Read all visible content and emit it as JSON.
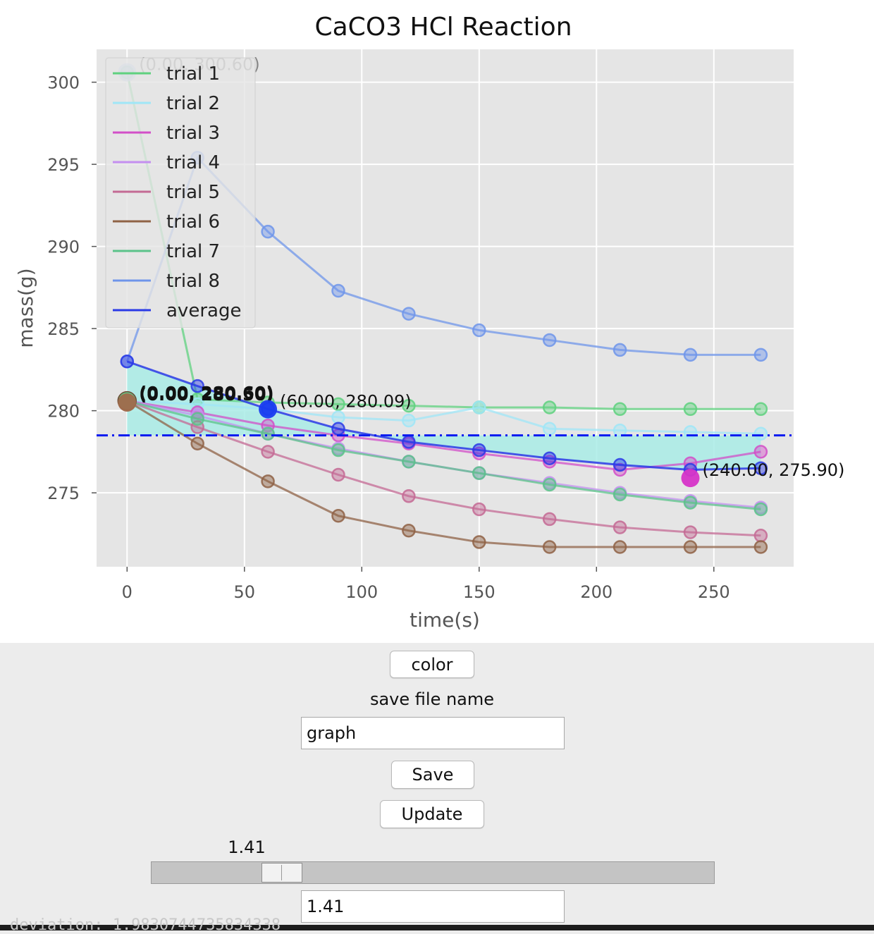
{
  "chart_data": {
    "type": "line",
    "title": "CaCO3 HCl Reaction",
    "xlabel": "time(s)",
    "ylabel": "mass(g)",
    "xlim": [
      -13,
      284
    ],
    "ylim": [
      270.5,
      302
    ],
    "xticks": [
      0,
      50,
      100,
      150,
      200,
      250
    ],
    "yticks": [
      275,
      280,
      285,
      290,
      295,
      300
    ],
    "grid": true,
    "style": "ggplot",
    "legend_position": "top-left",
    "series": [
      {
        "name": "trial 1",
        "color": "#5fd17f",
        "x": [
          0,
          30,
          60,
          90,
          120,
          150,
          180,
          210,
          240,
          270
        ],
        "values": [
          300.6,
          280.7,
          280.5,
          280.4,
          280.3,
          280.2,
          280.2,
          280.1,
          280.1,
          280.1
        ]
      },
      {
        "name": "trial 2",
        "color": "#9fe6f7",
        "x": [
          0,
          30,
          60,
          90,
          120,
          150,
          180,
          210,
          240,
          270
        ],
        "values": [
          280.6,
          280.4,
          280.1,
          279.6,
          279.4,
          280.2,
          278.9,
          278.8,
          278.7,
          278.6
        ]
      },
      {
        "name": "trial 3",
        "color": "#d24fc8",
        "x": [
          0,
          30,
          60,
          90,
          120,
          150,
          180,
          210,
          240,
          270
        ],
        "values": [
          280.6,
          279.9,
          279.1,
          278.5,
          278.0,
          277.4,
          276.9,
          276.4,
          276.8,
          277.5
        ]
      },
      {
        "name": "trial 4",
        "color": "#c48ff0",
        "x": [
          0,
          30,
          60,
          90,
          120,
          150,
          180,
          210,
          240,
          270
        ],
        "values": [
          280.6,
          279.7,
          278.6,
          277.7,
          276.9,
          276.2,
          275.6,
          275.0,
          274.5,
          274.1
        ]
      },
      {
        "name": "trial 5",
        "color": "#c46a94",
        "x": [
          0,
          30,
          60,
          90,
          120,
          150,
          180,
          210,
          240,
          270
        ],
        "values": [
          280.6,
          279.0,
          277.5,
          276.1,
          274.8,
          274.0,
          273.4,
          272.9,
          272.6,
          272.4
        ]
      },
      {
        "name": "trial 6",
        "color": "#8f6245",
        "x": [
          0,
          30,
          60,
          90,
          120,
          150,
          180,
          210,
          240,
          270
        ],
        "values": [
          280.6,
          278.0,
          275.7,
          273.6,
          272.7,
          272.0,
          271.7,
          271.7,
          271.7,
          271.7
        ]
      },
      {
        "name": "trial 7",
        "color": "#5bc38a",
        "x": [
          0,
          30,
          60,
          90,
          120,
          150,
          180,
          210,
          240,
          270
        ],
        "values": [
          280.6,
          279.5,
          278.6,
          277.6,
          276.9,
          276.2,
          275.5,
          274.9,
          274.4,
          274.0
        ]
      },
      {
        "name": "trial 8",
        "color": "#6f95ea",
        "x": [
          0,
          30,
          60,
          90,
          120,
          150,
          180,
          210,
          240,
          270
        ],
        "values": [
          283.0,
          295.4,
          290.9,
          287.3,
          285.9,
          284.9,
          284.3,
          283.7,
          283.4,
          283.4
        ]
      },
      {
        "name": "average",
        "color": "#2a3ae6",
        "x": [
          0,
          30,
          60,
          90,
          120,
          150,
          180,
          210,
          240,
          270
        ],
        "values": [
          283.0,
          281.5,
          280.1,
          278.9,
          278.1,
          277.6,
          277.1,
          276.7,
          276.4,
          276.5
        ]
      }
    ],
    "mean_line": {
      "y": 278.5,
      "color": "#0a1af0",
      "style": "dash-dot"
    },
    "fill_band": {
      "color": "#a9ece6",
      "between": [
        "average",
        "mean_line"
      ]
    },
    "highlight_points": [
      {
        "x": 0,
        "y": 300.6,
        "color": "#b8c9ee",
        "label": "(0.00, 300.60)"
      },
      {
        "x": 0,
        "y": 280.6,
        "color": "#5fbf7f",
        "label": "(0.00, 280.60)"
      },
      {
        "x": 0,
        "y": 280.5,
        "color": "#a06a4c",
        "label": "(0.00, 280.50)"
      },
      {
        "x": 60,
        "y": 280.09,
        "color": "#1a3df0",
        "label": "(60.00, 280.09)"
      },
      {
        "x": 240,
        "y": 275.9,
        "color": "#d634c8",
        "label": "(240.00, 275.90)"
      }
    ]
  },
  "controls": {
    "color_button": "color",
    "save_name_label": "save file name",
    "save_name_value": "graph",
    "save_button": "Save",
    "update_button": "Update",
    "slider_value_label": "1.41",
    "slider_value": 1.41,
    "slider_min": 0,
    "slider_max": 8,
    "slider_input_value": "1.41"
  },
  "terminal": {
    "text": "deviation:   1.9830744735834338"
  }
}
